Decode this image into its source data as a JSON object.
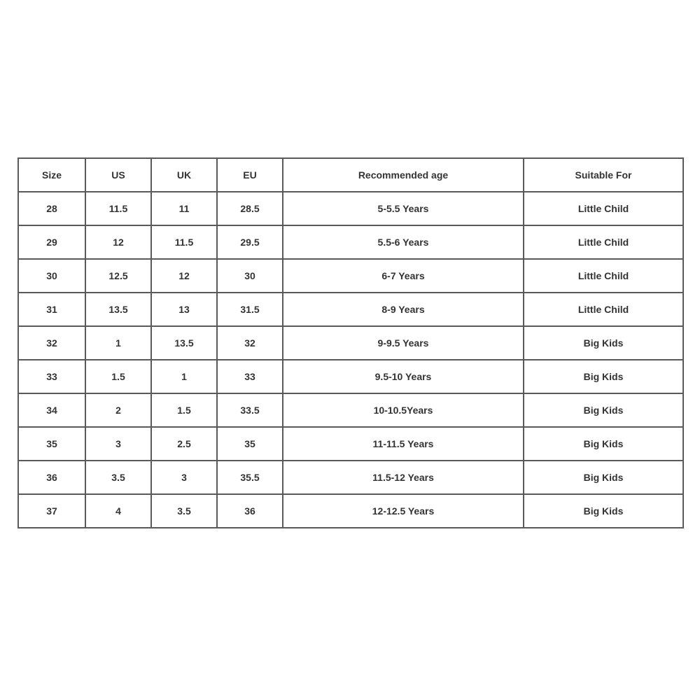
{
  "table": {
    "headers": [
      "Size",
      "US",
      "UK",
      "EU",
      "Recommended age",
      "Suitable For"
    ],
    "rows": [
      [
        "28",
        "11.5",
        "11",
        "28.5",
        "5-5.5 Years",
        "Little Child"
      ],
      [
        "29",
        "12",
        "11.5",
        "29.5",
        "5.5-6 Years",
        "Little Child"
      ],
      [
        "30",
        "12.5",
        "12",
        "30",
        "6-7 Years",
        "Little Child"
      ],
      [
        "31",
        "13.5",
        "13",
        "31.5",
        "8-9 Years",
        "Little Child"
      ],
      [
        "32",
        "1",
        "13.5",
        "32",
        "9-9.5 Years",
        "Big Kids"
      ],
      [
        "33",
        "1.5",
        "1",
        "33",
        "9.5-10 Years",
        "Big Kids"
      ],
      [
        "34",
        "2",
        "1.5",
        "33.5",
        "10-10.5Years",
        "Big Kids"
      ],
      [
        "35",
        "3",
        "2.5",
        "35",
        "11-11.5 Years",
        "Big Kids"
      ],
      [
        "36",
        "3.5",
        "3",
        "35.5",
        "11.5-12 Years",
        "Big Kids"
      ],
      [
        "37",
        "4",
        "3.5",
        "36",
        "12-12.5 Years",
        "Big Kids"
      ]
    ]
  }
}
